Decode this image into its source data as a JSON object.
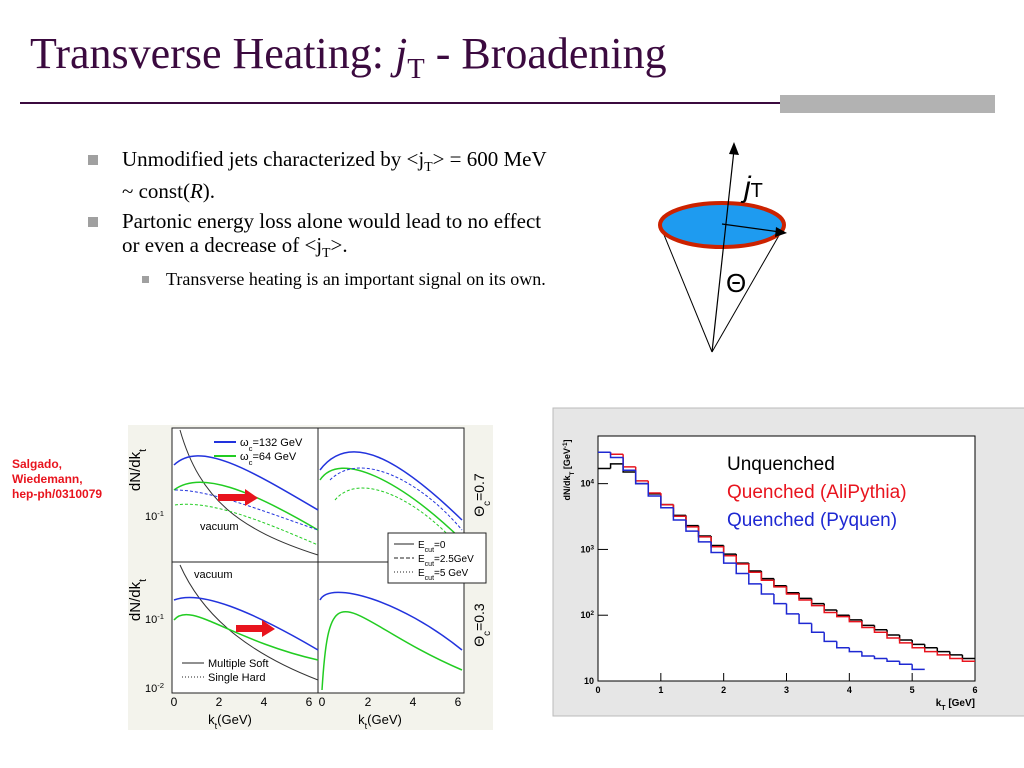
{
  "title": {
    "text": "Transverse Heating: ",
    "italic": "j",
    "sub": "T",
    "text2": " - Broadening"
  },
  "bullets": [
    {
      "text": "Unmodified jets characterized by <j",
      "sub": "T",
      "text2": "> = 600 MeV ~ const(",
      "italic": "R",
      "text3": ")."
    },
    {
      "text": "Partonic energy loss alone would lead to no effect or even a decrease of  <j",
      "sub": "T",
      "text2": ">."
    }
  ],
  "sub_bullets": [
    {
      "text": "Transverse heating is an important signal on its own."
    }
  ],
  "diagram": {
    "jet_label": "j",
    "jet_sub": "T",
    "angle_label": "Θ"
  },
  "citation": "Salgado, Wiedemann, hep-ph/0310079",
  "left_figure": {
    "y_label": {
      "text": "dN/dk",
      "sub": "t"
    },
    "x_label": {
      "text": "k",
      "sub": "t",
      "text2": "(GeV)"
    },
    "legend_omega": [
      {
        "symbol": "ω",
        "sub": "c",
        "text": "=132 GeV"
      },
      {
        "symbol": "ω",
        "sub": "c",
        "text": "=64 GeV"
      }
    ],
    "legend_ecut": [
      {
        "text": "E",
        "sub": "cut",
        "text2": "=0"
      },
      {
        "text": "E",
        "sub": "cut",
        "text2": "=2.5GeV"
      },
      {
        "text": "E",
        "sub": "cut",
        "text2": "=5 GeV"
      }
    ],
    "legend_mode": [
      "Multiple Soft",
      "Single Hard"
    ],
    "vacuum": "vacuum",
    "theta_labels": [
      {
        "symbol": "Θ",
        "sub": "c",
        "text": "=0.7"
      },
      {
        "symbol": "Θ",
        "sub": "c",
        "text": "=0.3"
      }
    ],
    "y_ticks_top": [
      {
        "base": "10",
        "exp": "-1"
      }
    ],
    "y_ticks_bottom": [
      {
        "base": "10",
        "exp": "-1"
      },
      {
        "base": "10",
        "exp": "-2"
      }
    ],
    "x_ticks": [
      "0",
      "2",
      "4",
      "6"
    ]
  },
  "chart_data": {
    "type": "histogram",
    "y_label": {
      "text": "dN/dk",
      "sub": "T",
      "text2": " [GeV",
      "sup": "-1",
      "text3": "]"
    },
    "x_label": {
      "text": "k",
      "sub": "T",
      "text2": " [GeV]"
    },
    "log_y": true,
    "xlim": [
      0,
      6
    ],
    "ylim": [
      10,
      53000
    ],
    "xticks": [
      0,
      1,
      2,
      3,
      4,
      5,
      6
    ],
    "yticks": [
      10,
      {
        "value": 100,
        "label": "10",
        "exponent": "2"
      },
      {
        "value": 1000,
        "label": "10",
        "exponent": "3"
      },
      {
        "value": 10000,
        "label": "10",
        "exponent": "4"
      }
    ],
    "bins": [
      0,
      0.2,
      0.4,
      0.6,
      0.8,
      1,
      1.2,
      1.4,
      1.6,
      1.8,
      2,
      2.2,
      2.4,
      2.6,
      2.8,
      3,
      3.2,
      3.4,
      3.6,
      3.8,
      4,
      4.2,
      4.4,
      4.6,
      4.8,
      5,
      5.2,
      5.4,
      5.6,
      5.8,
      6
    ],
    "series": [
      {
        "name": "Unquenched",
        "color": "#000000",
        "values": [
          17000,
          20000,
          15000,
          10000,
          7000,
          4800,
          3300,
          2300,
          1600,
          1150,
          850,
          620,
          470,
          360,
          280,
          220,
          180,
          150,
          120,
          100,
          85,
          70,
          60,
          50,
          42,
          36,
          32,
          28,
          25,
          22
        ]
      },
      {
        "name": "Quenched (AliPythia)",
        "color": "#e8141e",
        "values": [
          30000,
          28000,
          18000,
          11000,
          7200,
          4800,
          3200,
          2200,
          1550,
          1100,
          800,
          600,
          450,
          340,
          270,
          210,
          170,
          140,
          110,
          95,
          80,
          65,
          55,
          45,
          38,
          32,
          28,
          25,
          22,
          20
        ]
      },
      {
        "name": "Quenched (Pyquen)",
        "color": "#1e28d2",
        "values": [
          30000,
          25000,
          16000,
          10000,
          6500,
          4300,
          2800,
          1900,
          1300,
          900,
          620,
          430,
          300,
          210,
          150,
          105,
          75,
          55,
          40,
          32,
          28,
          24,
          22,
          20,
          18,
          15,
          null,
          null,
          null,
          null
        ]
      }
    ]
  }
}
